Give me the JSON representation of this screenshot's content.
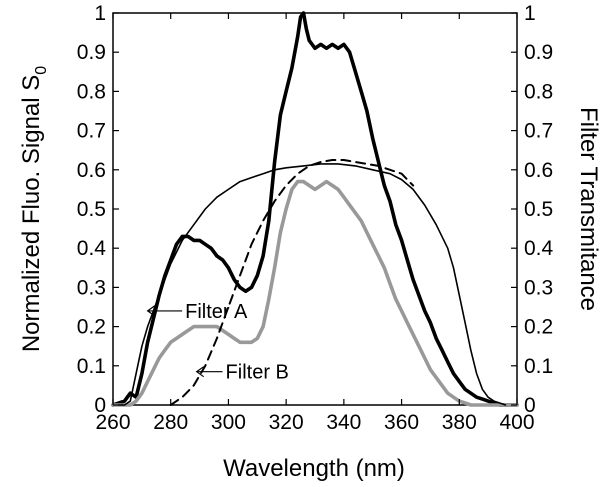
{
  "chart_data": {
    "type": "line",
    "xlabel": "Wavelength (nm)",
    "ylabel_left": "Normalized Fluo. Signal S",
    "ylabel_left_subscript": "0",
    "ylabel_right": "Filter Transmitance",
    "xlim": [
      260,
      400
    ],
    "ylim_left": [
      0,
      1
    ],
    "ylim_right": [
      0,
      1
    ],
    "x_ticks": [
      "260",
      "280",
      "300",
      "320",
      "340",
      "360",
      "380",
      "400"
    ],
    "y_ticks_left": [
      "0",
      "0.1",
      "0.2",
      "0.3",
      "0.4",
      "0.5",
      "0.6",
      "0.7",
      "0.8",
      "0.9",
      "1"
    ],
    "y_ticks_right": [
      "0",
      "0.1",
      "0.2",
      "0.3",
      "0.4",
      "0.5",
      "0.6",
      "0.7",
      "0.8",
      "0.9",
      "1"
    ],
    "grid": false,
    "series": [
      {
        "color": "#000000",
        "style": "thick",
        "x": [
          260,
          264,
          266,
          268,
          270,
          272,
          274,
          276,
          278,
          280,
          282,
          284,
          286,
          288,
          290,
          292,
          294,
          296,
          298,
          300,
          302,
          304,
          306,
          308,
          310,
          312,
          314,
          316,
          318,
          320,
          322,
          324,
          325,
          326,
          327,
          328,
          330,
          332,
          334,
          336,
          338,
          340,
          342,
          344,
          346,
          348,
          350,
          352,
          354,
          356,
          358,
          360,
          362,
          364,
          366,
          368,
          370,
          372,
          374,
          376,
          378,
          380,
          382,
          384,
          386,
          388,
          390,
          392,
          394,
          396,
          398,
          400
        ],
        "y": [
          0.0,
          0.01,
          0.03,
          0.02,
          0.08,
          0.16,
          0.22,
          0.28,
          0.33,
          0.37,
          0.41,
          0.43,
          0.43,
          0.42,
          0.42,
          0.41,
          0.4,
          0.38,
          0.37,
          0.35,
          0.32,
          0.3,
          0.29,
          0.3,
          0.33,
          0.38,
          0.47,
          0.62,
          0.74,
          0.8,
          0.86,
          0.94,
          0.99,
          1.0,
          0.96,
          0.93,
          0.91,
          0.92,
          0.91,
          0.92,
          0.91,
          0.92,
          0.9,
          0.85,
          0.8,
          0.75,
          0.68,
          0.62,
          0.56,
          0.52,
          0.46,
          0.42,
          0.37,
          0.32,
          0.28,
          0.24,
          0.21,
          0.17,
          0.14,
          0.11,
          0.08,
          0.06,
          0.04,
          0.03,
          0.02,
          0.015,
          0.01,
          0.005,
          0.0,
          0.0,
          0.0,
          0.0
        ]
      },
      {
        "color": "#999999",
        "style": "thick",
        "x": [
          260,
          266,
          268,
          270,
          272,
          274,
          276,
          278,
          280,
          282,
          284,
          286,
          288,
          290,
          292,
          294,
          296,
          298,
          300,
          302,
          304,
          306,
          308,
          310,
          312,
          314,
          316,
          318,
          320,
          322,
          324,
          326,
          328,
          330,
          332,
          334,
          336,
          338,
          340,
          342,
          344,
          346,
          348,
          350,
          352,
          354,
          356,
          358,
          360,
          362,
          364,
          366,
          368,
          370,
          372,
          374,
          376,
          378,
          380,
          382,
          384,
          386,
          388,
          390,
          395,
          400
        ],
        "y": [
          0.0,
          0.0,
          0.01,
          0.03,
          0.06,
          0.09,
          0.12,
          0.14,
          0.16,
          0.17,
          0.18,
          0.19,
          0.2,
          0.2,
          0.2,
          0.2,
          0.2,
          0.19,
          0.18,
          0.17,
          0.16,
          0.16,
          0.16,
          0.17,
          0.2,
          0.27,
          0.35,
          0.44,
          0.5,
          0.55,
          0.57,
          0.57,
          0.56,
          0.55,
          0.56,
          0.57,
          0.56,
          0.55,
          0.53,
          0.51,
          0.49,
          0.47,
          0.44,
          0.41,
          0.38,
          0.35,
          0.31,
          0.27,
          0.24,
          0.21,
          0.18,
          0.15,
          0.12,
          0.09,
          0.07,
          0.05,
          0.03,
          0.02,
          0.01,
          0.005,
          0.0,
          0.0,
          0.0,
          0.0,
          0.0,
          0.0
        ]
      },
      {
        "color": "#000000",
        "style": "thin",
        "x": [
          262,
          264,
          266,
          268,
          270,
          272,
          274,
          276,
          278,
          280,
          284,
          288,
          292,
          296,
          300,
          304,
          308,
          312,
          316,
          320,
          326,
          332,
          338,
          344,
          350,
          356,
          360,
          364,
          368,
          372,
          376,
          378,
          380,
          382,
          384,
          386,
          388,
          390,
          392,
          394,
          396
        ],
        "y": [
          0.0,
          0.0,
          0.01,
          0.08,
          0.15,
          0.2,
          0.24,
          0.28,
          0.32,
          0.36,
          0.42,
          0.46,
          0.5,
          0.53,
          0.55,
          0.57,
          0.58,
          0.59,
          0.6,
          0.605,
          0.61,
          0.615,
          0.615,
          0.61,
          0.6,
          0.59,
          0.575,
          0.55,
          0.51,
          0.46,
          0.4,
          0.35,
          0.28,
          0.21,
          0.14,
          0.08,
          0.04,
          0.02,
          0.01,
          0.005,
          0.0
        ]
      },
      {
        "color": "#000000",
        "style": "dashed",
        "x": [
          280,
          284,
          288,
          292,
          296,
          300,
          304,
          308,
          312,
          316,
          320,
          324,
          328,
          332,
          336,
          340,
          344,
          348,
          352,
          356,
          360,
          362,
          364
        ],
        "y": [
          0.0,
          0.02,
          0.05,
          0.1,
          0.17,
          0.25,
          0.33,
          0.41,
          0.47,
          0.52,
          0.56,
          0.59,
          0.61,
          0.62,
          0.625,
          0.625,
          0.62,
          0.615,
          0.61,
          0.6,
          0.59,
          0.575,
          0.56
        ]
      }
    ],
    "annotations": [
      {
        "text": "Filter A",
        "points_to": [
          272,
          0.24
        ],
        "label_at": [
          285,
          0.24
        ]
      },
      {
        "text": "Filter B",
        "points_to": [
          289,
          0.085
        ],
        "label_at": [
          299,
          0.09
        ]
      }
    ]
  }
}
